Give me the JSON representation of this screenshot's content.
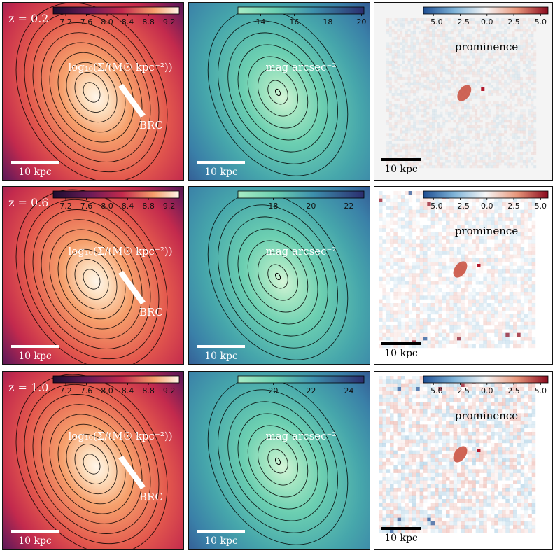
{
  "redshifts": [
    {
      "label": "z = 0.2"
    },
    {
      "label": "z = 0.6"
    },
    {
      "label": "z = 1.0"
    }
  ],
  "mass_column": {
    "label": "log₁₀(Σ/(M☉ kpc⁻²))",
    "ticks": [
      "7.2",
      "7.6",
      "8.0",
      "8.4",
      "8.8",
      "9.2"
    ],
    "annotation": "BRC",
    "scalebar": "10 kpc"
  },
  "mag_column": {
    "label": "mag arcsec⁻²",
    "ticks_by_row": [
      [
        "14",
        "16",
        "18",
        "20"
      ],
      [
        "18",
        "20",
        "22"
      ],
      [
        "20",
        "22",
        "24"
      ]
    ],
    "scalebar": "10 kpc"
  },
  "prominence_column": {
    "label": "prominence",
    "ticks": [
      "−5.0",
      "−2.5",
      "0.0",
      "2.5",
      "5.0"
    ],
    "scalebar": "10 kpc"
  },
  "colors": {
    "magma_dark": "#2a0b3a",
    "magma_mid": "#c32a4d",
    "magma_bright": "#f6a06c",
    "magma_peak": "#fff6ea",
    "mako_dark": "#2b2d6e",
    "mako_mid": "#3a80a8",
    "mako_bright": "#6ccfb1",
    "rdbu_red": "#8b0a1e",
    "rdbu_blue": "#1f4f93"
  }
}
